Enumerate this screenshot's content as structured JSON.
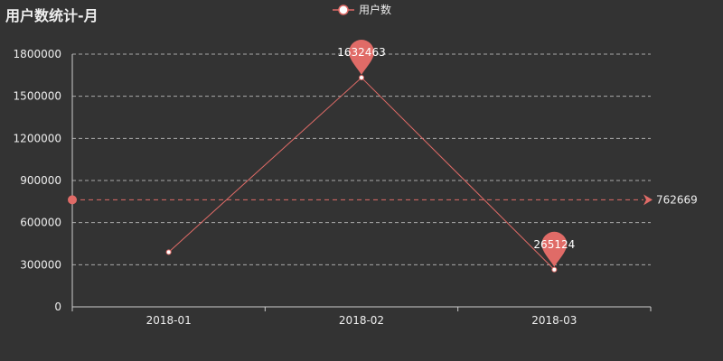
{
  "colors": {
    "background": "#333333",
    "series": "#e06b67",
    "text": "#eeeeee",
    "grid": "#aaaaaa",
    "axis": "#cccccc"
  },
  "chart_data": {
    "type": "line",
    "title": "用户数统计-月",
    "xlabel": "",
    "ylabel": "",
    "categories": [
      "2018-01",
      "2018-02",
      "2018-03"
    ],
    "series": [
      {
        "name": "用户数",
        "values": [
          390000,
          1632463,
          265124
        ]
      }
    ],
    "ylim": [
      0,
      1800000
    ],
    "yticks": [
      0,
      300000,
      600000,
      900000,
      1200000,
      1500000,
      1800000
    ],
    "grid": true,
    "legend": "top-center",
    "mark_points": [
      {
        "category": "2018-02",
        "value": 1632463,
        "label": "1632463"
      },
      {
        "category": "2018-03",
        "value": 265124,
        "label": "265124"
      }
    ],
    "mark_line": {
      "value": 762669,
      "label": "762669"
    }
  }
}
